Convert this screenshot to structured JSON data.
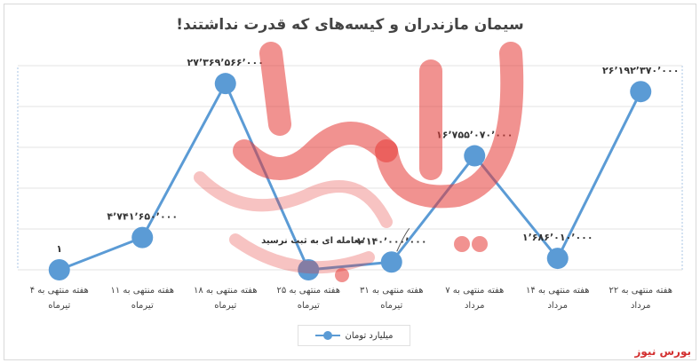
{
  "title": "سیمان مازندران و کیسه‌های که قدرت نداشتند!",
  "brand": "بورس نیوز",
  "watermark_text": "بورس نیوز",
  "colors": {
    "series": "#5b9bd5",
    "watermark": "#e53935",
    "label": "#333333"
  },
  "chart_data": {
    "type": "line",
    "categories": [
      [
        "هفته منتهی به ۴",
        "تیرماه"
      ],
      [
        "هفته منتهی به ۱۱",
        "تیرماه"
      ],
      [
        "هفته منتهی به ۱۸",
        "تیرماه"
      ],
      [
        "هفته منتهی به ۲۵",
        "تیرماه"
      ],
      [
        "هفته منتهی به ۳۱",
        "تیرماه"
      ],
      [
        "هفته منتهی به ۷",
        "مرداد"
      ],
      [
        "هفته منتهی به ۱۴",
        "مرداد"
      ],
      [
        "هفته منتهی به ۲۲",
        "مرداد"
      ]
    ],
    "series": [
      {
        "name": "میلیارد تومان",
        "values": [
          1,
          4741650000,
          27369566000,
          1,
          1140000000,
          16755070000,
          1686010000,
          26192370000
        ],
        "labels": [
          "۱",
          "۴٬۷۴۱٬۶۵۰٬۰۰۰",
          "۲۷٬۳۶۹٬۵۶۶٬۰۰۰",
          "",
          "۱٬۱۴۰٬۰۰۰٬۰۰۰",
          "۱۶٬۷۵۵٬۰۷۰٬۰۰۰",
          "۱٬۶۸۶٬۰۱۰٬۰۰۰",
          "۲۶٬۱۹۲٬۳۷۰٬۰۰۰"
        ]
      }
    ],
    "annotation": "معامله ای به ثبت نرسید",
    "ylim": [
      0,
      30000000000
    ],
    "grid": true,
    "legend": "bottom",
    "show_y_axis": false
  }
}
